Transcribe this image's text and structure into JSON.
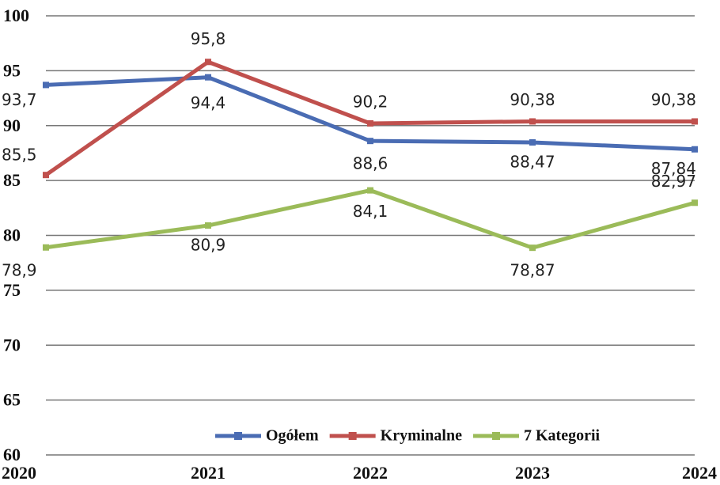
{
  "chart_data": {
    "type": "line",
    "categories": [
      "2020",
      "2021",
      "2022",
      "2023",
      "2024"
    ],
    "series": [
      {
        "name": "Ogółem",
        "color": "#4a6cb3",
        "values": [
          93.7,
          94.4,
          88.6,
          88.47,
          87.84
        ],
        "value_labels": [
          "93,7",
          "94,4",
          "88,6",
          "88,47",
          "87,84"
        ]
      },
      {
        "name": "Kryminalne",
        "color": "#c0504d",
        "values": [
          85.5,
          95.8,
          90.2,
          90.38,
          90.38
        ],
        "value_labels": [
          "85,5",
          "95,8",
          "90,2",
          "90,38",
          "90,38"
        ]
      },
      {
        "name": "7 Kategorii",
        "color": "#9bbb59",
        "values": [
          78.9,
          80.9,
          84.1,
          78.87,
          82.97
        ],
        "value_labels": [
          "78,9",
          "80,9",
          "84,1",
          "78,87",
          "82,97"
        ]
      }
    ],
    "ylim": [
      60,
      100
    ],
    "yticks": [
      60,
      65,
      70,
      75,
      80,
      85,
      90,
      95,
      100
    ],
    "grid": true,
    "legend": "bottom-right"
  }
}
